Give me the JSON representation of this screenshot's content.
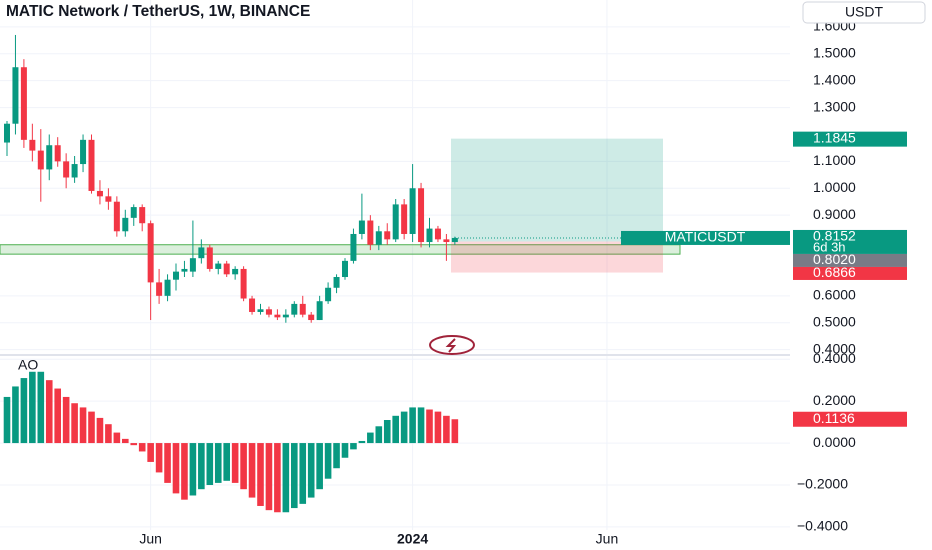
{
  "chart_data": {
    "type": "candlestick",
    "title": "MATIC Network / TetherUS, 1W, BINANCE",
    "currency": "USDT",
    "open": [
      1.17,
      1.24,
      1.45,
      1.18,
      1.14,
      1.07,
      1.16,
      1.1,
      1.04,
      1.09,
      1.18,
      0.99,
      0.97,
      0.95,
      0.84,
      0.89,
      0.93,
      0.87,
      0.65,
      0.6,
      0.66,
      0.69,
      0.69,
      0.74,
      0.78,
      0.7,
      0.72,
      0.68,
      0.7,
      0.59,
      0.54,
      0.55,
      0.53,
      0.52,
      0.53,
      0.57,
      0.53,
      0.51,
      0.58,
      0.63,
      0.67,
      0.73,
      0.83,
      0.88,
      0.79,
      0.84,
      0.81,
      0.94,
      0.83,
      1.0,
      0.8,
      0.85,
      0.81,
      0.8
    ],
    "high": [
      1.25,
      1.57,
      1.48,
      1.24,
      1.22,
      1.2,
      1.19,
      1.13,
      1.12,
      1.2,
      1.2,
      1.03,
      1.0,
      0.97,
      0.92,
      0.94,
      0.94,
      0.88,
      0.7,
      0.68,
      0.72,
      0.73,
      0.88,
      0.81,
      0.79,
      0.73,
      0.73,
      0.71,
      0.71,
      0.6,
      0.57,
      0.56,
      0.55,
      0.55,
      0.58,
      0.6,
      0.54,
      0.6,
      0.65,
      0.68,
      0.74,
      0.85,
      0.98,
      0.9,
      0.86,
      0.87,
      0.96,
      0.96,
      1.09,
      1.02,
      0.89,
      0.86,
      0.83,
      0.82
    ],
    "low": [
      1.12,
      1.2,
      1.15,
      1.1,
      0.95,
      1.03,
      1.08,
      1.0,
      1.02,
      1.06,
      0.98,
      0.94,
      0.92,
      0.82,
      0.82,
      0.86,
      0.84,
      0.51,
      0.57,
      0.58,
      0.62,
      0.67,
      0.67,
      0.72,
      0.69,
      0.68,
      0.67,
      0.66,
      0.58,
      0.53,
      0.53,
      0.52,
      0.51,
      0.5,
      0.52,
      0.52,
      0.5,
      0.51,
      0.57,
      0.61,
      0.66,
      0.72,
      0.81,
      0.77,
      0.77,
      0.79,
      0.8,
      0.81,
      0.8,
      0.78,
      0.78,
      0.8,
      0.73,
      0.79
    ],
    "close": [
      1.24,
      1.45,
      1.18,
      1.14,
      1.07,
      1.16,
      1.1,
      1.04,
      1.09,
      1.18,
      0.99,
      0.97,
      0.95,
      0.84,
      0.89,
      0.93,
      0.87,
      0.65,
      0.6,
      0.66,
      0.69,
      0.7,
      0.74,
      0.78,
      0.7,
      0.72,
      0.68,
      0.7,
      0.59,
      0.54,
      0.55,
      0.53,
      0.52,
      0.53,
      0.57,
      0.53,
      0.51,
      0.58,
      0.63,
      0.67,
      0.73,
      0.83,
      0.88,
      0.79,
      0.84,
      0.81,
      0.94,
      0.83,
      1.0,
      0.8,
      0.85,
      0.81,
      0.8,
      0.8152
    ],
    "up_color": "#089981",
    "down_color": "#f23645",
    "ylim": [
      0.38,
      1.7
    ],
    "yticks": [
      {
        "value": 1.6,
        "label": "1.6000"
      },
      {
        "value": 1.5,
        "label": "1.5000"
      },
      {
        "value": 1.4,
        "label": "1.4000"
      },
      {
        "value": 1.3,
        "label": "1.3000"
      },
      {
        "value": 1.1,
        "label": "1.1000"
      },
      {
        "value": 1.0,
        "label": "1.0000"
      },
      {
        "value": 0.9,
        "label": "0.9000"
      },
      {
        "value": 0.6,
        "label": "0.6000"
      },
      {
        "value": 0.5,
        "label": "0.5000"
      },
      {
        "value": 0.4,
        "label": "0.4000"
      }
    ],
    "xticks": [
      {
        "value": 17,
        "label": "Jun"
      },
      {
        "value": 48,
        "label": "2024"
      },
      {
        "value": 71,
        "label": "Jun"
      }
    ],
    "symbol": "MATICUSDT",
    "countdown": "6d 3h",
    "position": {
      "target": 1.1845,
      "entry": {
        "value": 0.802,
        "label": "0.8020"
      },
      "stop": 0.6866
    },
    "zone": [
      0.755,
      0.79
    ],
    "indicator": {
      "name": "AO",
      "values": [
        0.22,
        0.27,
        0.31,
        0.34,
        0.34,
        0.3,
        0.26,
        0.22,
        0.19,
        0.17,
        0.15,
        0.12,
        0.09,
        0.05,
        0.02,
        -0.01,
        -0.04,
        -0.09,
        -0.14,
        -0.19,
        -0.24,
        -0.27,
        -0.25,
        -0.22,
        -0.2,
        -0.19,
        -0.18,
        -0.19,
        -0.22,
        -0.26,
        -0.3,
        -0.32,
        -0.33,
        -0.33,
        -0.31,
        -0.29,
        -0.26,
        -0.22,
        -0.17,
        -0.12,
        -0.07,
        -0.03,
        0.01,
        0.05,
        0.08,
        0.11,
        0.13,
        0.15,
        0.17,
        0.17,
        0.16,
        0.15,
        0.13,
        0.1136
      ],
      "ylim": [
        -0.51,
        0.42
      ],
      "yticks": [
        {
          "value": 0.4,
          "label": "0.4000"
        },
        {
          "value": 0.2,
          "label": "0.2000"
        },
        {
          "value": 0,
          "label": "0.0000"
        },
        {
          "value": -0.2,
          "label": "−0.2000"
        },
        {
          "value": -0.4,
          "label": "−0.4000"
        }
      ]
    }
  }
}
